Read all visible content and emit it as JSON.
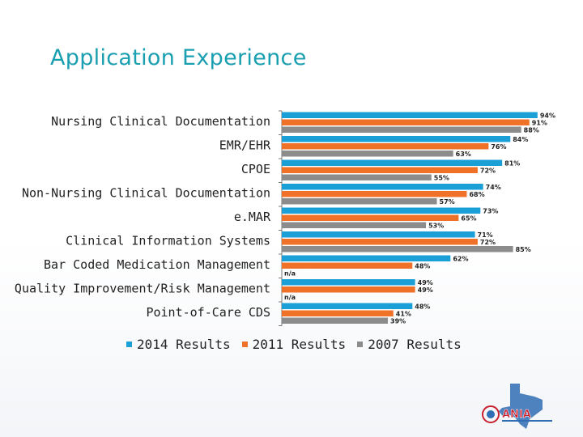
{
  "header": {
    "title": "Application Experience"
  },
  "chart_data": {
    "type": "bar",
    "orientation": "horizontal",
    "title": "Application Experience",
    "categories": [
      "Nursing Clinical Documentation",
      "EMR/EHR",
      "CPOE",
      "Non-Nursing Clinical Documentation",
      "e.MAR",
      "Clinical Information Systems",
      "Bar Coded Medication Management",
      "Quality Improvement/Risk Management",
      "Point-of-Care CDS"
    ],
    "series": [
      {
        "name": "2014 Results",
        "color": "#1a9fd6",
        "values": [
          94,
          84,
          81,
          74,
          73,
          71,
          62,
          49,
          48
        ],
        "labels": [
          "94%",
          "84%",
          "81%",
          "74%",
          "73%",
          "71%",
          "62%",
          "49%",
          "48%"
        ]
      },
      {
        "name": "2011 Results",
        "color": "#f07228",
        "values": [
          91,
          76,
          72,
          68,
          65,
          72,
          48,
          49,
          41
        ],
        "labels": [
          "91%",
          "76%",
          "72%",
          "68%",
          "65%",
          "72%",
          "48%",
          "49%",
          "41%"
        ]
      },
      {
        "name": "2007 Results",
        "color": "#8c8c8c",
        "values": [
          88,
          63,
          55,
          57,
          53,
          85,
          null,
          null,
          39
        ],
        "labels": [
          "88%",
          "63%",
          "55%",
          "57%",
          "53%",
          "85%",
          "n/a",
          "n/a",
          "39%"
        ]
      }
    ],
    "xlim": [
      0,
      100
    ],
    "legend": "bottom"
  },
  "logo": {
    "text": "ANIA"
  }
}
